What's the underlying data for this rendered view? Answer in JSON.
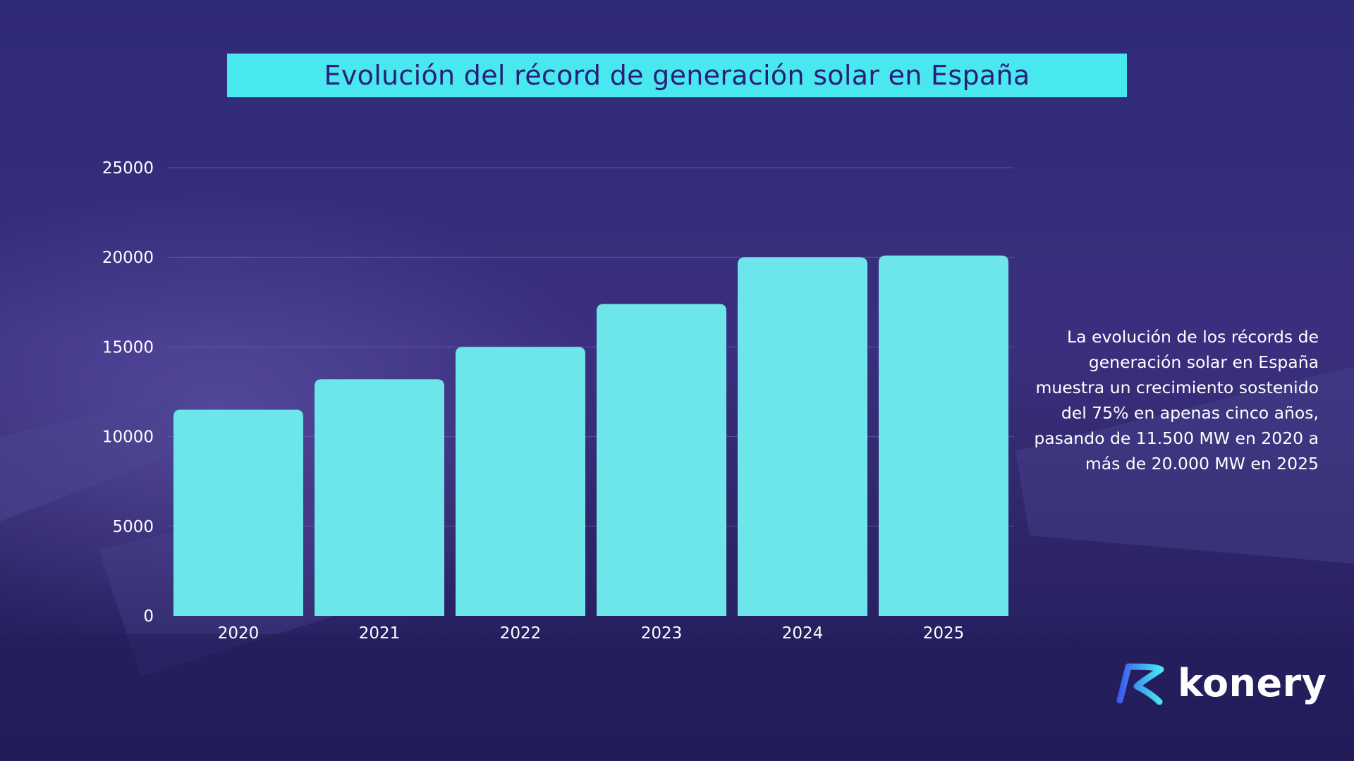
{
  "colors": {
    "title_bg": "#48e8ee",
    "title_text": "#2a1f78",
    "bar": "#6ce6ea",
    "axis_text": "#ffffff",
    "grid": "#6a63a8"
  },
  "chart_data": {
    "type": "bar",
    "title": "Evolución del récord de generación solar en España",
    "categories": [
      "2020",
      "2021",
      "2022",
      "2023",
      "2024",
      "2025"
    ],
    "values": [
      11500,
      13200,
      15000,
      17400,
      20000,
      20100
    ],
    "ylim": [
      0,
      25000
    ],
    "yticks": [
      "0",
      "5000",
      "10000",
      "15000",
      "20000",
      "25000"
    ],
    "xlabel": "",
    "ylabel": "",
    "grid": true,
    "legend": "none"
  },
  "description": "La evolución de los récords de generación solar en España muestra un crecimiento sostenido del 75% en apenas cinco años, pasando de 11.500 MW en 2020 a más de 20.000 MW en 2025",
  "logo": {
    "text": "konery",
    "icon": "konery-logo-icon"
  }
}
